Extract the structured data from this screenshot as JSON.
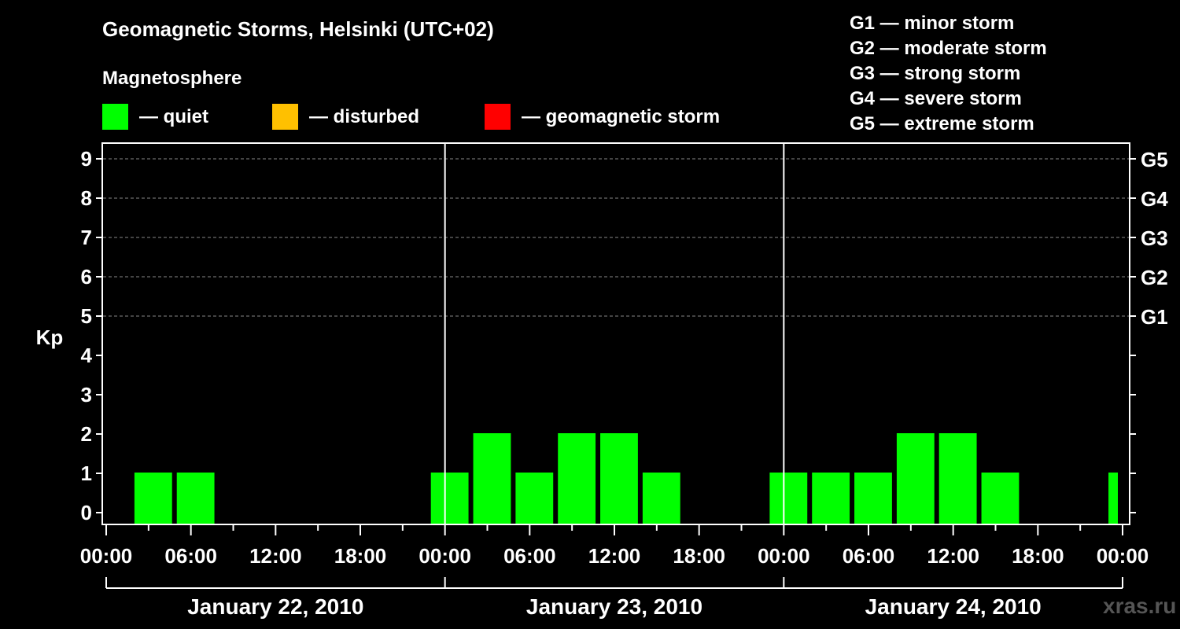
{
  "chart_data": {
    "type": "bar",
    "title": "Geomagnetic Storms, Helsinki (UTC+02)",
    "subtitle": "Magnetosphere",
    "ylabel": "Kp",
    "ylim": [
      0,
      9
    ],
    "yticks": [
      "0",
      "1",
      "2",
      "3",
      "4",
      "5",
      "6",
      "7",
      "8",
      "9"
    ],
    "right_ticks": [
      {
        "value": 5,
        "label": "G1"
      },
      {
        "value": 6,
        "label": "G2"
      },
      {
        "value": 7,
        "label": "G3"
      },
      {
        "value": 8,
        "label": "G4"
      },
      {
        "value": 9,
        "label": "G5"
      }
    ],
    "x_hours_range": [
      0,
      72
    ],
    "xticks": [
      {
        "hour": 0,
        "label": "00:00"
      },
      {
        "hour": 6,
        "label": "06:00"
      },
      {
        "hour": 12,
        "label": "12:00"
      },
      {
        "hour": 18,
        "label": "18:00"
      },
      {
        "hour": 24,
        "label": "00:00"
      },
      {
        "hour": 30,
        "label": "06:00"
      },
      {
        "hour": 36,
        "label": "12:00"
      },
      {
        "hour": 42,
        "label": "18:00"
      },
      {
        "hour": 48,
        "label": "00:00"
      },
      {
        "hour": 54,
        "label": "06:00"
      },
      {
        "hour": 60,
        "label": "12:00"
      },
      {
        "hour": 66,
        "label": "18:00"
      },
      {
        "hour": 72,
        "label": "00:00"
      }
    ],
    "days": [
      {
        "label": "January 22, 2010",
        "start": 0,
        "end": 24
      },
      {
        "label": "January 23, 2010",
        "start": 24,
        "end": 48
      },
      {
        "label": "January 24, 2010",
        "start": 48,
        "end": 72
      }
    ],
    "bars": [
      {
        "start": 2,
        "end": 5,
        "kp": 1,
        "status": "quiet"
      },
      {
        "start": 5,
        "end": 8,
        "kp": 1,
        "status": "quiet"
      },
      {
        "start": 23,
        "end": 26,
        "kp": 1,
        "status": "quiet"
      },
      {
        "start": 26,
        "end": 29,
        "kp": 2,
        "status": "quiet"
      },
      {
        "start": 29,
        "end": 32,
        "kp": 1,
        "status": "quiet"
      },
      {
        "start": 32,
        "end": 35,
        "kp": 2,
        "status": "quiet"
      },
      {
        "start": 35,
        "end": 38,
        "kp": 2,
        "status": "quiet"
      },
      {
        "start": 38,
        "end": 41,
        "kp": 1,
        "status": "quiet"
      },
      {
        "start": 47,
        "end": 50,
        "kp": 1,
        "status": "quiet"
      },
      {
        "start": 50,
        "end": 53,
        "kp": 1,
        "status": "quiet"
      },
      {
        "start": 53,
        "end": 56,
        "kp": 1,
        "status": "quiet"
      },
      {
        "start": 56,
        "end": 59,
        "kp": 2,
        "status": "quiet"
      },
      {
        "start": 59,
        "end": 62,
        "kp": 2,
        "status": "quiet"
      },
      {
        "start": 62,
        "end": 65,
        "kp": 1,
        "status": "quiet"
      },
      {
        "start": 71,
        "end": 72,
        "kp": 1,
        "status": "quiet"
      }
    ],
    "status_colors": {
      "quiet": "#00ff00",
      "disturbed": "#ffc000",
      "storm": "#ff0000"
    },
    "legend": [
      {
        "key": "quiet",
        "label": "— quiet"
      },
      {
        "key": "disturbed",
        "label": "— disturbed"
      },
      {
        "key": "storm",
        "label": "— geomagnetic storm"
      }
    ],
    "gscale": [
      "G1 — minor storm",
      "G2 — moderate storm",
      "G3 — strong storm",
      "G4 — severe storm",
      "G5 — extreme storm"
    ]
  },
  "watermark": "xras.ru"
}
